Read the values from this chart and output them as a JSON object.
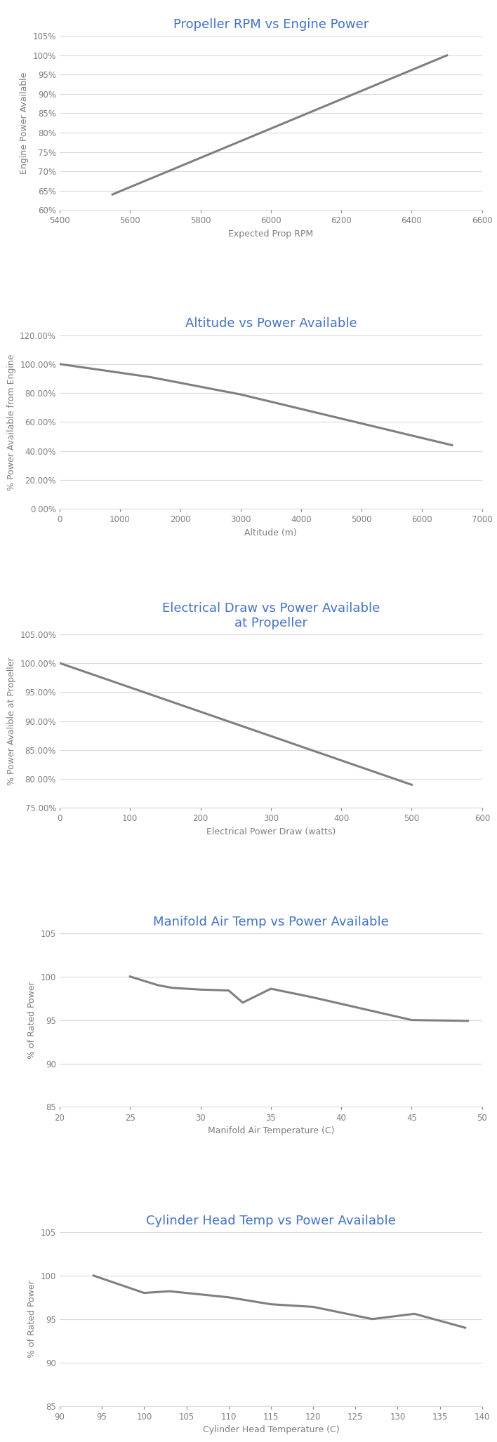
{
  "chart1": {
    "title": "Propeller RPM vs Engine Power",
    "xlabel": "Expected Prop RPM",
    "ylabel": "Engine Power Available",
    "x": [
      5550,
      6500
    ],
    "y": [
      64,
      100
    ],
    "xlim": [
      5400,
      6600
    ],
    "ylim": [
      60,
      105
    ],
    "yticks": [
      60,
      65,
      70,
      75,
      80,
      85,
      90,
      95,
      100,
      105
    ],
    "xticks": [
      5400,
      5600,
      5800,
      6000,
      6200,
      6400,
      6600
    ]
  },
  "chart2": {
    "title": "Altitude vs Power Available",
    "xlabel": "Altitude (m)",
    "ylabel": "% Power Available from Engine",
    "x": [
      0,
      500,
      1000,
      1500,
      2000,
      2500,
      3000,
      3500,
      4000,
      4500,
      5000,
      5500,
      6000,
      6500
    ],
    "y": [
      100.0,
      97.0,
      94.0,
      91.0,
      87.0,
      83.0,
      79.0,
      74.0,
      69.0,
      64.0,
      59.0,
      54.0,
      49.0,
      44.0
    ],
    "xlim": [
      0,
      7000
    ],
    "ylim": [
      0.0,
      120.0
    ],
    "yticks": [
      0.0,
      20.0,
      40.0,
      60.0,
      80.0,
      100.0,
      120.0
    ],
    "xticks": [
      0,
      1000,
      2000,
      3000,
      4000,
      5000,
      6000,
      7000
    ]
  },
  "chart3": {
    "title": "Electrical Draw vs Power Available\nat Propeller",
    "xlabel": "Electrical Power Draw (watts)",
    "ylabel": "% Power Avalible at Propeller",
    "x": [
      0,
      100,
      200,
      300,
      400,
      500
    ],
    "y": [
      100.0,
      95.8,
      91.6,
      87.4,
      83.2,
      79.0
    ],
    "xlim": [
      0,
      600
    ],
    "ylim": [
      75.0,
      105.0
    ],
    "yticks": [
      75.0,
      80.0,
      85.0,
      90.0,
      95.0,
      100.0,
      105.0
    ],
    "xticks": [
      0,
      100,
      200,
      300,
      400,
      500,
      600
    ]
  },
  "chart4": {
    "title": "Manifold Air Temp vs Power Available",
    "xlabel": "Manifold Air Temperature (C)",
    "ylabel": "% of Rated Power",
    "x": [
      25,
      27,
      28,
      30,
      32,
      33,
      35,
      38,
      45,
      49
    ],
    "y": [
      100.0,
      99.0,
      98.7,
      98.5,
      98.4,
      97.0,
      98.6,
      97.6,
      95.0,
      94.9
    ],
    "xlim": [
      20,
      50
    ],
    "ylim": [
      85,
      105
    ],
    "yticks": [
      85,
      90,
      95,
      100,
      105
    ],
    "xticks": [
      20,
      25,
      30,
      35,
      40,
      45,
      50
    ]
  },
  "chart5": {
    "title": "Cylinder Head Temp vs Power Available",
    "xlabel": "Cylinder Head Temperature (C)",
    "ylabel": "% of Rated Power",
    "x": [
      94,
      100,
      103,
      105,
      107,
      110,
      115,
      120,
      127,
      132,
      138
    ],
    "y": [
      100.0,
      98.0,
      98.2,
      98.0,
      97.8,
      97.5,
      96.7,
      96.4,
      95.0,
      95.6,
      94.0
    ],
    "xlim": [
      90,
      140
    ],
    "ylim": [
      85,
      105
    ],
    "yticks": [
      85,
      90,
      95,
      100,
      105
    ],
    "xticks": [
      90,
      95,
      100,
      105,
      110,
      115,
      120,
      125,
      130,
      135,
      140
    ]
  },
  "title_color": "#4472C4",
  "line_color": "#7F7F7F",
  "grid_color": "#D9D9D9",
  "label_color": "#7F7F7F",
  "tick_color": "#7F7F7F",
  "bg_color": "#FFFFFF",
  "title_fontsize": 13,
  "label_fontsize": 9,
  "tick_fontsize": 8.5,
  "line_width": 2.2
}
